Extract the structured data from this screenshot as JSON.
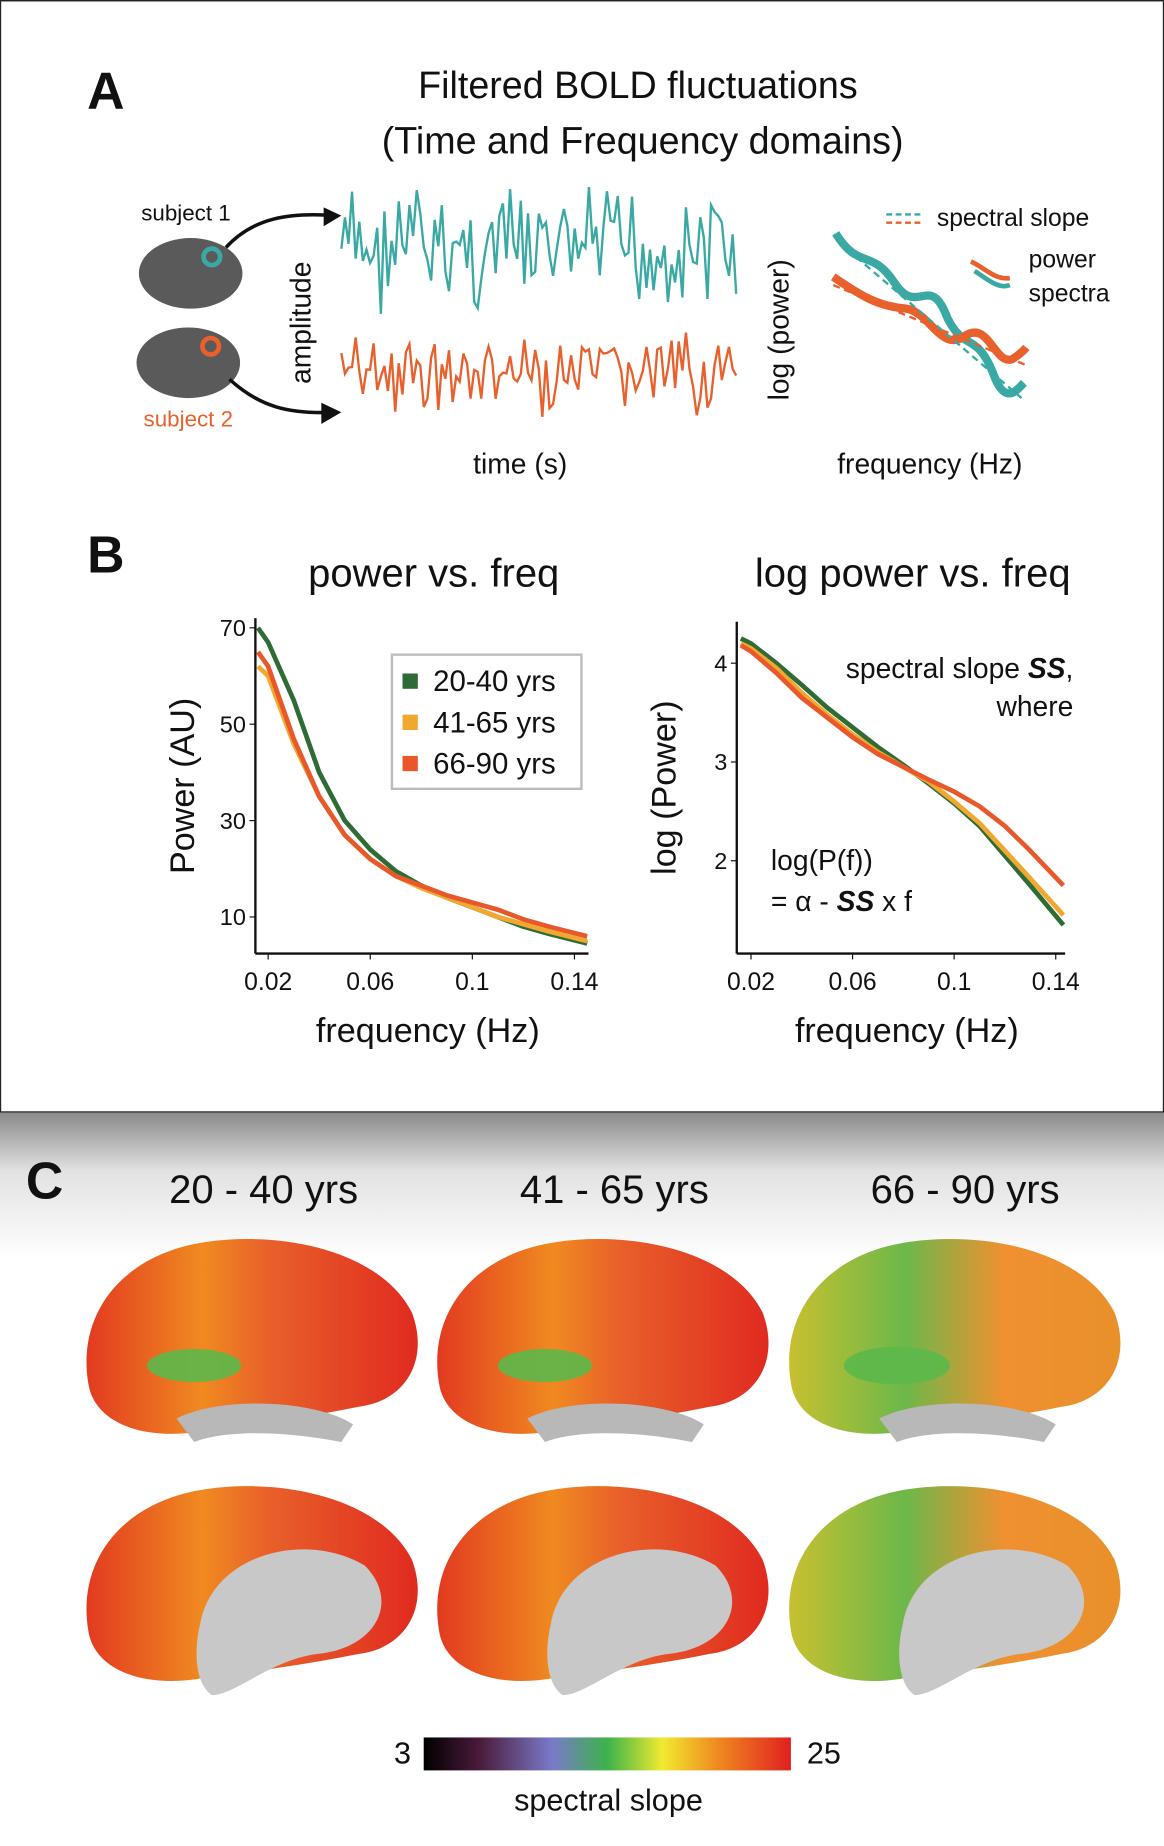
{
  "panel_a": {
    "letter": "A",
    "title_lines": [
      "Filtered BOLD fluctuations",
      "(Time and Frequency domains)"
    ],
    "subject_1": "subject 1",
    "subject_2": "subject 2",
    "amplitude_label": "amplitude",
    "time_label": "time (s)",
    "log_power_label": "log (power)",
    "frequency_label": "frequency (Hz)",
    "legend_slope": "spectral slope",
    "legend_power": [
      "power",
      "spectra"
    ]
  },
  "panel_b": {
    "letter": "B"
  },
  "chart_data": [
    {
      "type": "line",
      "title": "power vs. freq",
      "x_label": "frequency (Hz)",
      "y_label": "Power (AU)",
      "x": [
        0.016,
        0.02,
        0.03,
        0.04,
        0.05,
        0.06,
        0.07,
        0.08,
        0.09,
        0.1,
        0.11,
        0.12,
        0.13,
        0.145
      ],
      "series": [
        {
          "name": "20-40 yrs",
          "color": "#2e6b35",
          "values": [
            70,
            67,
            55,
            40,
            30,
            24,
            19.5,
            16.5,
            14,
            12,
            10,
            8,
            6.5,
            4.5
          ]
        },
        {
          "name": "41-65 yrs",
          "color": "#f0a830",
          "values": [
            62,
            60,
            46,
            35,
            27,
            22,
            18.5,
            16,
            14,
            12,
            10,
            8.5,
            7,
            5
          ]
        },
        {
          "name": "66-90 yrs",
          "color": "#e8582a",
          "values": [
            65,
            62,
            47,
            35,
            27,
            22,
            18.5,
            16.5,
            14.5,
            13,
            11.5,
            9.5,
            8,
            6
          ]
        }
      ],
      "xlim": [
        0.015,
        0.1455
      ],
      "ylim": [
        2.4,
        72
      ],
      "xticks": [
        0.02,
        0.06,
        0.1,
        0.14
      ],
      "yticks": [
        10,
        30,
        50,
        70
      ],
      "legend": "upper right"
    },
    {
      "type": "line",
      "title": "log power vs. freq",
      "x_label": "frequency (Hz)",
      "y_label": "log (Power)",
      "x": [
        0.016,
        0.02,
        0.03,
        0.04,
        0.05,
        0.06,
        0.07,
        0.08,
        0.09,
        0.1,
        0.11,
        0.12,
        0.13,
        0.143
      ],
      "series": [
        {
          "name": "20-40 yrs",
          "color": "#2e6b35",
          "values": [
            4.25,
            4.2,
            4.0,
            3.78,
            3.55,
            3.35,
            3.15,
            2.97,
            2.78,
            2.58,
            2.35,
            2.05,
            1.75,
            1.35
          ]
        },
        {
          "name": "41-65 yrs",
          "color": "#f0a830",
          "values": [
            4.2,
            4.15,
            3.95,
            3.7,
            3.48,
            3.28,
            3.1,
            2.95,
            2.8,
            2.6,
            2.38,
            2.1,
            1.82,
            1.45
          ]
        },
        {
          "name": "66-90 yrs",
          "color": "#e8582a",
          "values": [
            4.18,
            4.12,
            3.9,
            3.65,
            3.45,
            3.25,
            3.08,
            2.95,
            2.82,
            2.7,
            2.55,
            2.35,
            2.1,
            1.75
          ]
        }
      ],
      "xlim": [
        0.0144,
        0.1437
      ],
      "ylim": [
        1.06,
        4.42
      ],
      "xticks": [
        0.02,
        0.06,
        0.1,
        0.14
      ],
      "yticks": [
        2,
        3,
        4
      ],
      "annotations": [
        [
          "spectral slope ",
          "SS",
          ","
        ],
        [
          "where"
        ],
        [
          "log(P(f))"
        ],
        [
          "= α - ",
          "SS",
          " x f"
        ]
      ]
    }
  ],
  "panel_c": {
    "letter": "C",
    "groups": [
      "20 - 40 yrs",
      "41 - 65 yrs",
      "66 - 90 yrs"
    ],
    "colorbar": {
      "min": 3,
      "max": 25,
      "label": "spectral slope"
    }
  }
}
